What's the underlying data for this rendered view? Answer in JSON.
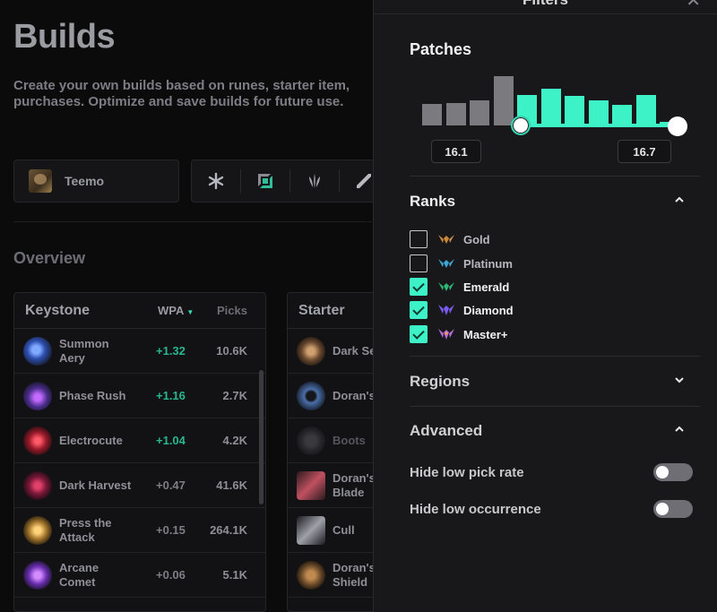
{
  "page": {
    "title": "Builds",
    "description": "Create your own builds based on runes, starter item,\npurchases. Optimize and save builds for future use.",
    "champion": "Teemo",
    "overview_title": "Overview"
  },
  "keystone_table": {
    "col_keystone": "Keystone",
    "col_wpa": "WPA",
    "col_picks": "Picks",
    "rows": [
      {
        "name": "Summon\nAery",
        "wpa": "+1.32",
        "picks": "10.6K",
        "positive": true
      },
      {
        "name": "Phase Rush",
        "wpa": "+1.16",
        "picks": "2.7K",
        "positive": true
      },
      {
        "name": "Electrocute",
        "wpa": "+1.04",
        "picks": "4.2K",
        "positive": true
      },
      {
        "name": "Dark Harvest",
        "wpa": "+0.47",
        "picks": "41.6K",
        "positive": false
      },
      {
        "name": "Press the\nAttack",
        "wpa": "+0.15",
        "picks": "264.1K",
        "positive": false
      },
      {
        "name": "Arcane\nComet",
        "wpa": "+0.06",
        "picks": "5.1K",
        "positive": false
      }
    ]
  },
  "starter_table": {
    "col_starter": "Starter",
    "rows": [
      {
        "name": "Dark Se"
      },
      {
        "name": "Doran's"
      },
      {
        "name": "Boots"
      },
      {
        "name": "Doran's\nBlade"
      },
      {
        "name": "Cull"
      },
      {
        "name": "Doran's\nShield"
      }
    ]
  },
  "filters": {
    "title": "Filters",
    "patches": {
      "title": "Patches",
      "min_label": "16.1",
      "max_label": "16.7",
      "bars": [
        0.38,
        0.4,
        0.45,
        0.88,
        0.55,
        0.65,
        0.52,
        0.45,
        0.36,
        0.55,
        0.06
      ],
      "selected_from_index": 4
    },
    "ranks": {
      "title": "Ranks",
      "items": [
        {
          "label": "Gold",
          "checked": false,
          "color": "#c98a3e"
        },
        {
          "label": "Platinum",
          "checked": false,
          "color": "#3fa6d4"
        },
        {
          "label": "Emerald",
          "checked": true,
          "color": "#2bb673"
        },
        {
          "label": "Diamond",
          "checked": true,
          "color": "#7b5cf0"
        },
        {
          "label": "Master+",
          "checked": true,
          "color": "#b56ad8"
        }
      ]
    },
    "regions": {
      "title": "Regions"
    },
    "advanced": {
      "title": "Advanced",
      "hide_low_pick_rate": "Hide low pick rate",
      "hide_low_occurrence": "Hide low occurrence"
    }
  },
  "colors": {
    "accent": "#3cf2c6",
    "panel_bg": "#18181b",
    "page_bg": "#0b0b0c"
  }
}
